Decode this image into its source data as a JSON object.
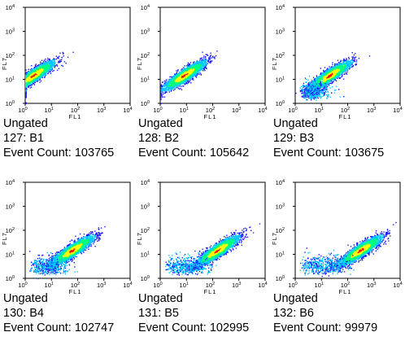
{
  "chart_data": [
    {
      "type": "scatter",
      "title": "",
      "xlabel": "FL1",
      "ylabel": "FL7",
      "xscale": "log",
      "yscale": "log",
      "xlim": [
        1,
        10000
      ],
      "ylim": [
        1,
        10000
      ],
      "xticks": [
        "10",
        "10",
        "10",
        "10",
        "10"
      ],
      "xtick_exp": [
        "0",
        "1",
        "2",
        "3",
        "4"
      ],
      "yticks": [
        "10",
        "10",
        "10",
        "10",
        "10"
      ],
      "ytick_exp": [
        "0",
        "1",
        "2",
        "3",
        "4"
      ],
      "gate": "Ungated",
      "sample": "127: B1",
      "event_count_label": "Event Count:",
      "event_count": 103765,
      "density_peak": {
        "x": 2,
        "y": 15
      },
      "density_colormap": [
        "#1a1aff",
        "#00c8ff",
        "#00ff80",
        "#ffff00",
        "#ff0000"
      ]
    },
    {
      "type": "scatter",
      "title": "",
      "xlabel": "FL1",
      "ylabel": "FL7",
      "xscale": "log",
      "yscale": "log",
      "xlim": [
        1,
        10000
      ],
      "ylim": [
        1,
        10000
      ],
      "xticks": [
        "10",
        "10",
        "10",
        "10",
        "10"
      ],
      "xtick_exp": [
        "0",
        "1",
        "2",
        "3",
        "4"
      ],
      "yticks": [
        "10",
        "10",
        "10",
        "10",
        "10"
      ],
      "ytick_exp": [
        "0",
        "1",
        "2",
        "3",
        "4"
      ],
      "gate": "Ungated",
      "sample": "128: B2",
      "event_count_label": "Event Count:",
      "event_count": 105642,
      "density_peak": {
        "x": 8,
        "y": 15
      },
      "density_colormap": [
        "#1a1aff",
        "#00c8ff",
        "#00ff80",
        "#ffff00",
        "#ff0000"
      ]
    },
    {
      "type": "scatter",
      "title": "",
      "xlabel": "FL1",
      "ylabel": "FL7",
      "xscale": "log",
      "yscale": "log",
      "xlim": [
        1,
        10000
      ],
      "ylim": [
        1,
        10000
      ],
      "xticks": [
        "10",
        "10",
        "10",
        "10",
        "10"
      ],
      "xtick_exp": [
        "0",
        "1",
        "2",
        "3",
        "4"
      ],
      "yticks": [
        "10",
        "10",
        "10",
        "10",
        "10"
      ],
      "ytick_exp": [
        "0",
        "1",
        "2",
        "3",
        "4"
      ],
      "gate": "Ungated",
      "sample": "129: B3",
      "event_count_label": "Event Count:",
      "event_count": 103675,
      "density_peak": {
        "x": 20,
        "y": 15
      },
      "density_colormap": [
        "#1a1aff",
        "#00c8ff",
        "#00ff80",
        "#ffff00",
        "#ff0000"
      ]
    },
    {
      "type": "scatter",
      "title": "",
      "xlabel": "FL1",
      "ylabel": "FL7",
      "xscale": "log",
      "yscale": "log",
      "xlim": [
        1,
        10000
      ],
      "ylim": [
        1,
        10000
      ],
      "xticks": [
        "10",
        "10",
        "10",
        "10",
        "10"
      ],
      "xtick_exp": [
        "0",
        "1",
        "2",
        "3",
        "4"
      ],
      "yticks": [
        "10",
        "10",
        "10",
        "10",
        "10"
      ],
      "ytick_exp": [
        "0",
        "1",
        "2",
        "3",
        "4"
      ],
      "gate": "Ungated",
      "sample": "130: B4",
      "event_count_label": "Event Count:",
      "event_count": 102747,
      "density_peak": {
        "x": 60,
        "y": 15
      },
      "density_colormap": [
        "#1a1aff",
        "#00c8ff",
        "#00ff80",
        "#ffff00",
        "#ff0000"
      ]
    },
    {
      "type": "scatter",
      "title": "",
      "xlabel": "FL1",
      "ylabel": "FL7",
      "xscale": "log",
      "yscale": "log",
      "xlim": [
        1,
        10000
      ],
      "ylim": [
        1,
        10000
      ],
      "xticks": [
        "10",
        "10",
        "10",
        "10",
        "10"
      ],
      "xtick_exp": [
        "0",
        "1",
        "2",
        "3",
        "4"
      ],
      "yticks": [
        "10",
        "10",
        "10",
        "10",
        "10"
      ],
      "ytick_exp": [
        "0",
        "1",
        "2",
        "3",
        "4"
      ],
      "gate": "Ungated",
      "sample": "131: B5",
      "event_count_label": "Event Count:",
      "event_count": 102995,
      "density_peak": {
        "x": 150,
        "y": 15
      },
      "density_colormap": [
        "#1a1aff",
        "#00c8ff",
        "#00ff80",
        "#ffff00",
        "#ff0000"
      ]
    },
    {
      "type": "scatter",
      "title": "",
      "xlabel": "FL1",
      "ylabel": "FL7",
      "xscale": "log",
      "yscale": "log",
      "xlim": [
        1,
        10000
      ],
      "ylim": [
        1,
        10000
      ],
      "xticks": [
        "10",
        "10",
        "10",
        "10",
        "10"
      ],
      "xtick_exp": [
        "0",
        "1",
        "2",
        "3",
        "4"
      ],
      "yticks": [
        "10",
        "10",
        "10",
        "10",
        "10"
      ],
      "ytick_exp": [
        "0",
        "1",
        "2",
        "3",
        "4"
      ],
      "gate": "Ungated",
      "sample": "132: B6",
      "event_count_label": "Event Count:",
      "event_count": 99979,
      "density_peak": {
        "x": 300,
        "y": 15
      },
      "density_colormap": [
        "#1a1aff",
        "#00c8ff",
        "#00ff80",
        "#ffff00",
        "#ff0000"
      ]
    }
  ]
}
